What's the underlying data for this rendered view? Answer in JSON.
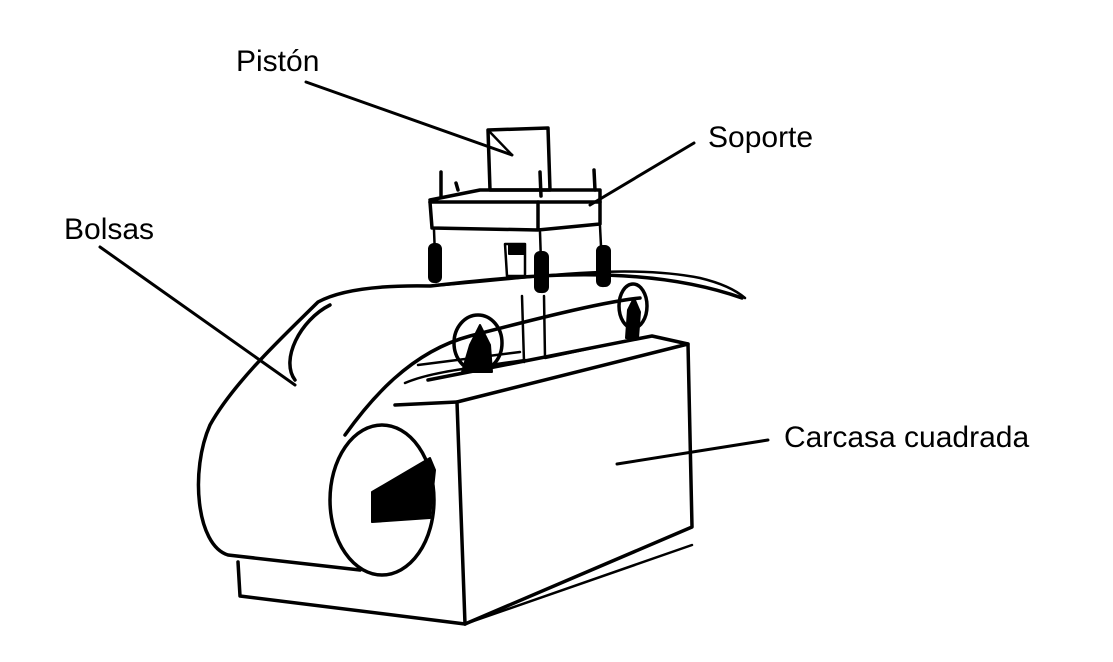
{
  "labels": {
    "piston": "Pistón",
    "soporte": "Soporte",
    "bolsas": "Bolsas",
    "carcasa": "Carcasa cuadrada"
  },
  "colors": {
    "ink": "#000000",
    "paper": "#ffffff"
  }
}
